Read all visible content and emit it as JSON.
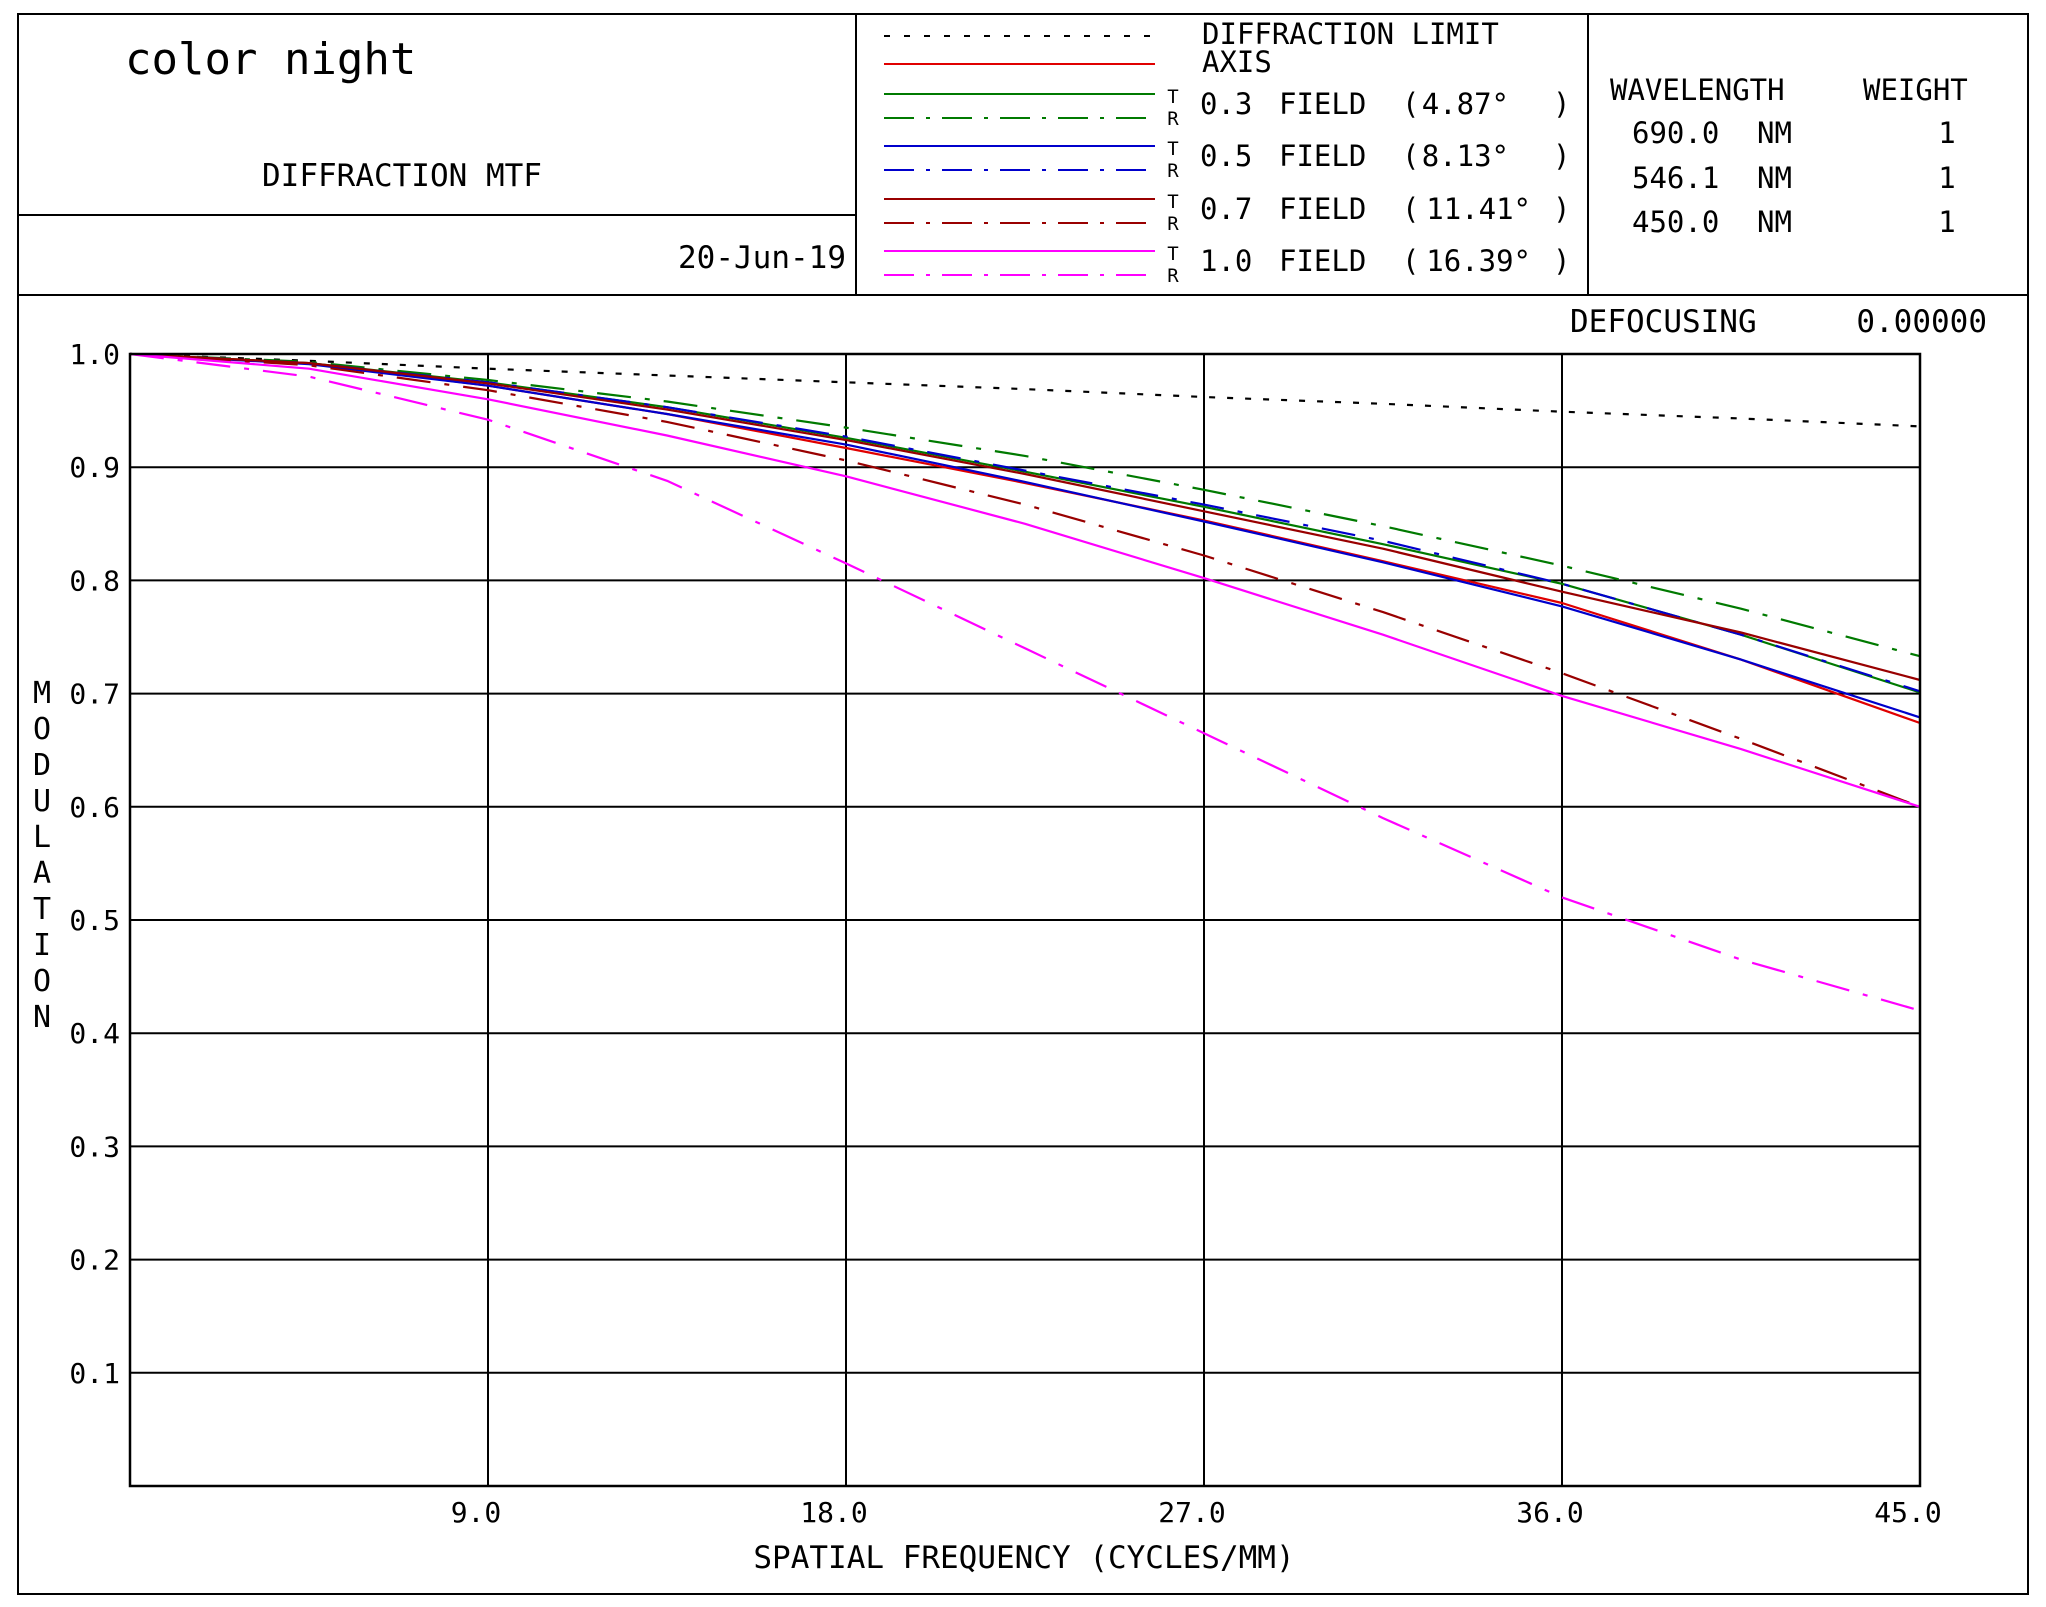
{
  "header": {
    "title": "color night",
    "subtitle": "DIFFRACTION MTF",
    "date": "20-Jun-19"
  },
  "legend": {
    "entries": [
      {
        "label": "DIFFRACTION LIMIT",
        "color": "#000000",
        "dash": "dotted"
      },
      {
        "label": "AXIS",
        "color": "#e00000",
        "dash": "solid"
      },
      {
        "label": "0.3 FIELD ( 4.87° )",
        "field_value": "0.3",
        "field_word": "FIELD",
        "angle": "4.87°",
        "color_t": "#007a00",
        "color_r": "#007a00"
      },
      {
        "label": "0.5 FIELD ( 8.13° )",
        "field_value": "0.5",
        "field_word": "FIELD",
        "angle": "8.13°",
        "color_t": "#0000cc",
        "color_r": "#0000cc"
      },
      {
        "label": "0.7 FIELD ( 11.41° )",
        "field_value": "0.7",
        "field_word": "FIELD",
        "angle": "11.41°",
        "color_t": "#990000",
        "color_r": "#990000"
      },
      {
        "label": "1.0 FIELD ( 16.39° )",
        "field_value": "1.0",
        "field_word": "FIELD",
        "angle": "16.39°",
        "color_t": "#ff00ff",
        "color_r": "#ff00ff"
      }
    ],
    "tangential_marker": "T",
    "radial_marker": "R"
  },
  "wavelengths": {
    "header_wavelength": "WAVELENGTH",
    "header_weight": "WEIGHT",
    "rows": [
      {
        "wavelength": "690.0",
        "unit": "NM",
        "weight": "1"
      },
      {
        "wavelength": "546.1",
        "unit": "NM",
        "weight": "1"
      },
      {
        "wavelength": "450.0",
        "unit": "NM",
        "weight": "1"
      }
    ]
  },
  "defocusing": {
    "label": "DEFOCUSING",
    "value": "0.00000"
  },
  "chart_data": {
    "type": "line",
    "xlabel": "SPATIAL FREQUENCY (CYCLES/MM)",
    "ylabel": "MODULATION",
    "xlim": [
      0,
      45
    ],
    "ylim": [
      0,
      1.0
    ],
    "x_ticks": [
      9,
      18,
      27,
      36,
      45
    ],
    "x_tick_labels": [
      "9.0",
      "18.0",
      "27.0",
      "36.0",
      "45.0"
    ],
    "y_ticks": [
      0.1,
      0.2,
      0.3,
      0.4,
      0.5,
      0.6,
      0.7,
      0.8,
      0.9,
      1.0
    ],
    "y_tick_labels": [
      "0.1",
      "0.2",
      "0.3",
      "0.4",
      "0.5",
      "0.6",
      "0.7",
      "0.8",
      "0.9",
      "1.0"
    ],
    "grid": true,
    "x": [
      0,
      4.5,
      9,
      13.5,
      18,
      22.5,
      27,
      31.5,
      36,
      40.5,
      45
    ],
    "series": [
      {
        "name": "DIFFRACTION LIMIT",
        "color": "#000000",
        "dash": "dotted",
        "values": [
          1.0,
          0.994,
          0.987,
          0.981,
          0.975,
          0.969,
          0.962,
          0.956,
          0.949,
          0.943,
          0.936
        ]
      },
      {
        "name": "AXIS",
        "color": "#e00000",
        "dash": "solid",
        "values": [
          1.0,
          0.992,
          0.972,
          0.947,
          0.917,
          0.886,
          0.853,
          0.817,
          0.78,
          0.73,
          0.674
        ]
      },
      {
        "name": "0.3 FIELD T",
        "color": "#007a00",
        "dash": "solid",
        "values": [
          1.0,
          0.992,
          0.975,
          0.953,
          0.926,
          0.896,
          0.865,
          0.832,
          0.797,
          0.752,
          0.701
        ]
      },
      {
        "name": "0.3 FIELD R",
        "color": "#007a00",
        "dash": "dashdot",
        "values": [
          1.0,
          0.993,
          0.977,
          0.958,
          0.935,
          0.91,
          0.88,
          0.848,
          0.813,
          0.775,
          0.733
        ]
      },
      {
        "name": "0.5 FIELD T",
        "color": "#0000cc",
        "dash": "solid",
        "values": [
          1.0,
          0.991,
          0.972,
          0.947,
          0.92,
          0.887,
          0.852,
          0.816,
          0.777,
          0.73,
          0.679
        ]
      },
      {
        "name": "0.5 FIELD R",
        "color": "#0000cc",
        "dash": "dashdot",
        "values": [
          1.0,
          0.992,
          0.975,
          0.953,
          0.927,
          0.897,
          0.867,
          0.835,
          0.797,
          0.752,
          0.702
        ]
      },
      {
        "name": "0.7 FIELD T",
        "color": "#990000",
        "dash": "solid",
        "values": [
          1.0,
          0.992,
          0.974,
          0.951,
          0.924,
          0.894,
          0.861,
          0.828,
          0.79,
          0.754,
          0.712
        ]
      },
      {
        "name": "0.7 FIELD R",
        "color": "#990000",
        "dash": "dashdot",
        "values": [
          1.0,
          0.99,
          0.968,
          0.94,
          0.906,
          0.867,
          0.822,
          0.772,
          0.718,
          0.66,
          0.6
        ]
      },
      {
        "name": "1.0 FIELD T",
        "color": "#ff00ff",
        "dash": "solid",
        "values": [
          1.0,
          0.987,
          0.96,
          0.928,
          0.892,
          0.85,
          0.802,
          0.752,
          0.698,
          0.651,
          0.6
        ]
      },
      {
        "name": "1.0 FIELD R",
        "color": "#ff00ff",
        "dash": "dashdot",
        "values": [
          1.0,
          0.98,
          0.942,
          0.888,
          0.815,
          0.74,
          0.665,
          0.59,
          0.52,
          0.465,
          0.42
        ]
      }
    ]
  }
}
